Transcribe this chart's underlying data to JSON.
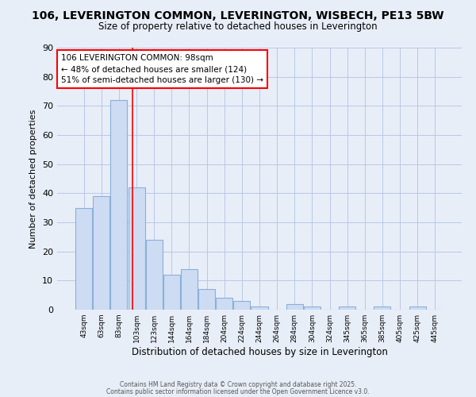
{
  "title1": "106, LEVERINGTON COMMON, LEVERINGTON, WISBECH, PE13 5BW",
  "title2": "Size of property relative to detached houses in Leverington",
  "xlabel": "Distribution of detached houses by size in Leverington",
  "ylabel": "Number of detached properties",
  "bin_labels": [
    "43sqm",
    "63sqm",
    "83sqm",
    "103sqm",
    "123sqm",
    "144sqm",
    "164sqm",
    "184sqm",
    "204sqm",
    "224sqm",
    "244sqm",
    "264sqm",
    "284sqm",
    "304sqm",
    "324sqm",
    "345sqm",
    "365sqm",
    "385sqm",
    "405sqm",
    "425sqm",
    "445sqm"
  ],
  "bar_heights": [
    35,
    39,
    72,
    42,
    24,
    12,
    14,
    7,
    4,
    3,
    1,
    0,
    2,
    1,
    0,
    1,
    0,
    1,
    0,
    1,
    0
  ],
  "bar_color": "#cddcf3",
  "bar_edge_color": "#8ab0d8",
  "grid_color": "#b8c8e8",
  "bg_color": "#e8eef8",
  "red_line_x": 2.75,
  "annotation_text": "106 LEVERINGTON COMMON: 98sqm\n← 48% of detached houses are smaller (124)\n51% of semi-detached houses are larger (130) →",
  "annotation_box_color": "white",
  "annotation_border_color": "red",
  "footer1": "Contains HM Land Registry data © Crown copyright and database right 2025.",
  "footer2": "Contains public sector information licensed under the Open Government Licence v3.0.",
  "ylim": [
    0,
    90
  ],
  "yticks": [
    0,
    10,
    20,
    30,
    40,
    50,
    60,
    70,
    80,
    90
  ]
}
